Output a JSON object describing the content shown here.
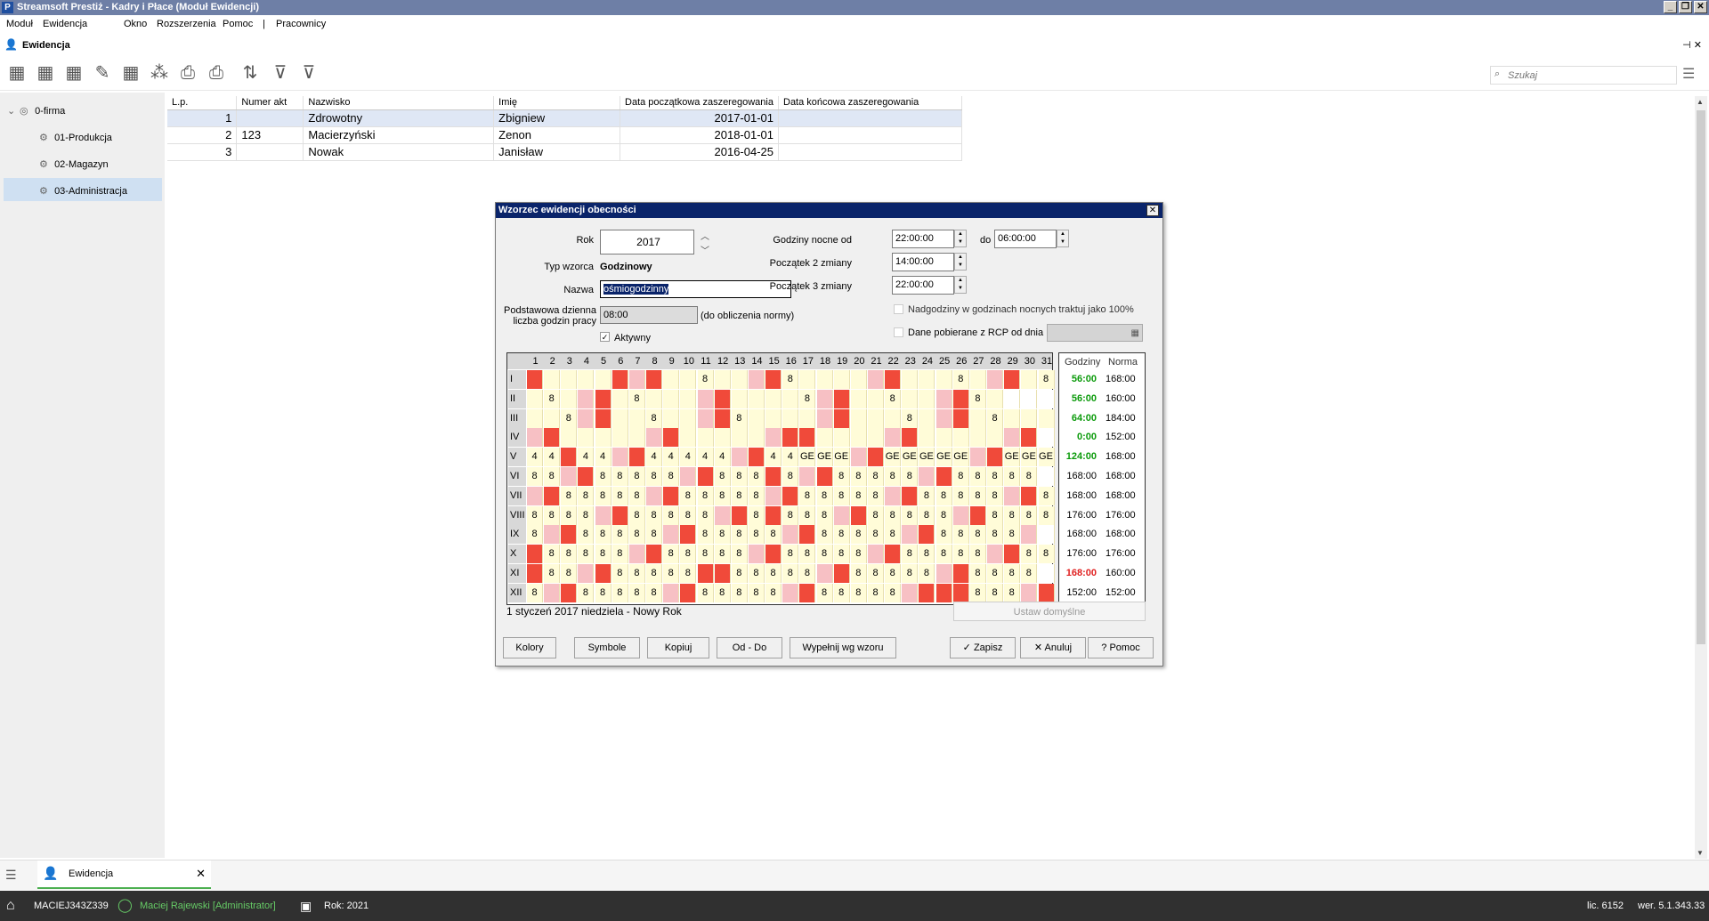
{
  "app": {
    "title": "Streamsoft Prestiż - Kadry i Płace (Moduł Ewidencji)",
    "logo": "P"
  },
  "menu": [
    "Moduł",
    "Ewidencja",
    "Okno",
    "Rozszerzenia",
    "Pomoc",
    "|",
    "Pracownicy"
  ],
  "tab": {
    "title": "Ewidencja"
  },
  "search": {
    "placeholder": "Szukaj"
  },
  "tree": [
    {
      "label": "0-firma",
      "level": 0
    },
    {
      "label": "01-Produkcja",
      "level": 1
    },
    {
      "label": "02-Magazyn",
      "level": 1
    },
    {
      "label": "03-Administracja",
      "level": 1,
      "selected": true
    }
  ],
  "grid": {
    "columns": [
      "L.p.",
      "Numer akt",
      "Nazwisko",
      "Imię",
      "Data początkowa zaszeregowania",
      "Data końcowa zaszeregowania"
    ],
    "rows": [
      [
        "1",
        "",
        "Zdrowotny",
        "Zbigniew",
        "2017-01-01",
        ""
      ],
      [
        "2",
        "123",
        "Macierzyński",
        "Zenon",
        "2018-01-01",
        ""
      ],
      [
        "3",
        "",
        "Nowak",
        "Janisław",
        "2016-04-25",
        ""
      ]
    ]
  },
  "dialog": {
    "title": "Wzorzec ewidencji obecności",
    "rok_label": "Rok",
    "rok": "2017",
    "typ_label": "Typ wzorca",
    "typ": "Godzinowy",
    "nazwa_label": "Nazwa",
    "nazwa": "ośmiogodzinny",
    "podst_label1": "Podstawowa dzienna",
    "podst_label2": "liczba godzin pracy",
    "podst": "08:00",
    "podst_note": "(do obliczenia normy)",
    "aktywny": "Aktywny",
    "nocne_label": "Godziny nocne od",
    "nocne_od": "22:00:00",
    "do_label": "do",
    "nocne_do": "06:00:00",
    "zm2_label": "Początek 2 zmiany",
    "zm2": "14:00:00",
    "zm3_label": "Początek 3 zmiany",
    "zm3": "22:00:00",
    "nadgodziny": "Nadgodziny w godzinach nocnych traktuj jako 100%",
    "rcp": "Dane pobierane z RCP od dnia",
    "status": "1 styczeń 2017 niedziela - Nowy Rok",
    "ustaw": "Ustaw domyślne",
    "sum_headers": [
      "Godziny",
      "Norma"
    ],
    "buttons": [
      "Kolory",
      "Symbole",
      "Kopiuj",
      "Od - Do",
      "Wypełnij wg wzoru",
      "Zapisz",
      "Anuluj",
      "Pomoc"
    ]
  },
  "calendar": {
    "months": [
      "I",
      "II",
      "III",
      "IV",
      "V",
      "VI",
      "VII",
      "VIII",
      "IX",
      "X",
      "XI",
      "XII"
    ],
    "days": [
      "1",
      "2",
      "3",
      "4",
      "5",
      "6",
      "7",
      "8",
      "9",
      "10",
      "11",
      "12",
      "13",
      "14",
      "15",
      "16",
      "17",
      "18",
      "19",
      "20",
      "21",
      "22",
      "23",
      "24",
      "25",
      "26",
      "27",
      "28",
      "29",
      "30",
      "31"
    ],
    "cells": [
      "R..8..8.R.R....8....R.8.....8.R..8....8....R.......R....8....8....R.....",
      "8.........R..8........8.R.........R.........8.........R..0............",
      "...8......R..8..8..........8.....R..8.........8....R..8..8............",
      "....R..............R......................R..................R........"
    ],
    "colors": {
      "sat": "#f7c0c4",
      "sun": "#f04a3a",
      "work": "#fffcd8",
      "empty": "#ffffff"
    },
    "totals": [
      {
        "godziny": "56:00",
        "norma": "168:00",
        "color": "green"
      },
      {
        "godziny": "56:00",
        "norma": "160:00",
        "color": "green"
      },
      {
        "godziny": "64:00",
        "norma": "184:00",
        "color": "green"
      },
      {
        "godziny": "0:00",
        "norma": "152:00",
        "color": "green"
      },
      {
        "godziny": "124:00",
        "norma": "168:00",
        "color": "green"
      },
      {
        "godziny": "168:00",
        "norma": "168:00",
        "color": "normal"
      },
      {
        "godziny": "168:00",
        "norma": "168:00",
        "color": "normal"
      },
      {
        "godziny": "176:00",
        "norma": "176:00",
        "color": "normal"
      },
      {
        "godziny": "168:00",
        "norma": "168:00",
        "color": "normal"
      },
      {
        "godziny": "176:00",
        "norma": "176:00",
        "color": "normal"
      },
      {
        "godziny": "168:00",
        "norma": "160:00",
        "color": "red"
      },
      {
        "godziny": "152:00",
        "norma": "152:00",
        "color": "normal"
      }
    ]
  },
  "status": {
    "computer": "MACIEJ343Z339",
    "user": "Maciej Rajewski [Administrator]",
    "rok": "Rok: 2021",
    "lic": "lic. 6152",
    "ver": "wer. 5.1.343.33"
  }
}
